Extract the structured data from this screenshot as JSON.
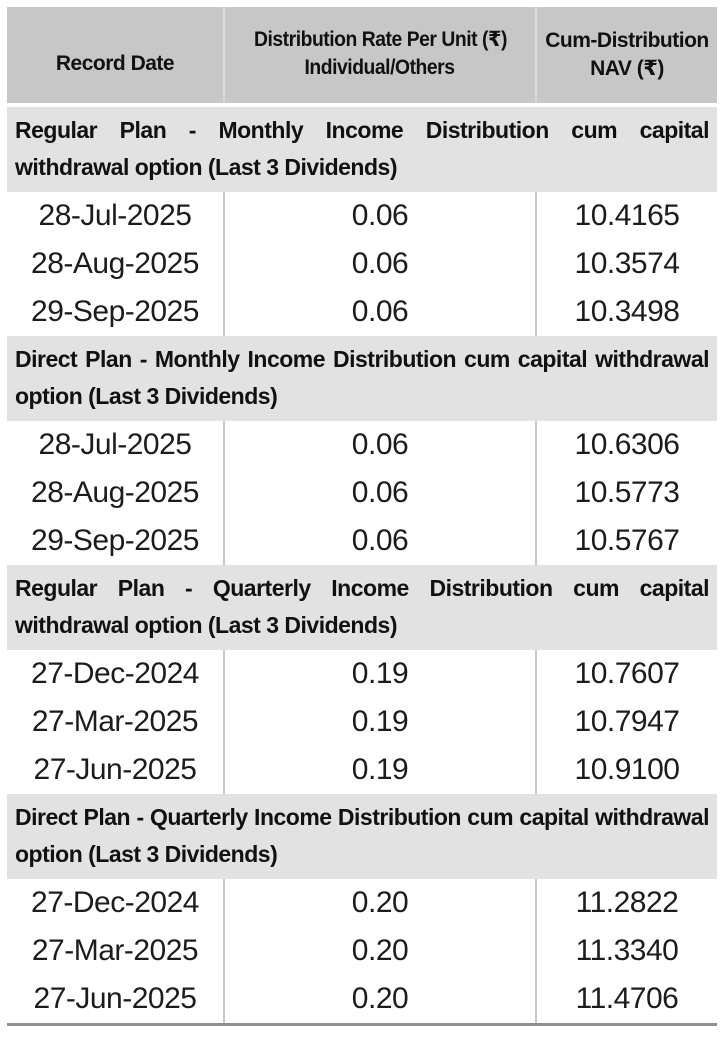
{
  "colors": {
    "header_bg": "#c7c7c7",
    "section_band_bg": "#e2e2e2",
    "divider": "#c9c9c9",
    "bottom_border": "#8f8f8f",
    "text": "#111111"
  },
  "header": {
    "record_date": "Record Date",
    "rate_line1": "Distribution Rate Per Unit (₹)",
    "rate_line2": "Individual/Others",
    "cum_nav": "Cum-Distribution NAV (₹)"
  },
  "sections": [
    {
      "title": "Regular Plan - Monthly Income Distribution cum capital withdrawal option (Last 3 Dividends)",
      "rows": [
        [
          "28-Jul-2025",
          "0.06",
          "10.4165"
        ],
        [
          "28-Aug-2025",
          "0.06",
          "10.3574"
        ],
        [
          "29-Sep-2025",
          "0.06",
          "10.3498"
        ]
      ]
    },
    {
      "title": "Direct Plan - Monthly Income Distribution cum capital withdrawal option (Last 3 Dividends)",
      "rows": [
        [
          "28-Jul-2025",
          "0.06",
          "10.6306"
        ],
        [
          "28-Aug-2025",
          "0.06",
          "10.5773"
        ],
        [
          "29-Sep-2025",
          "0.06",
          "10.5767"
        ]
      ]
    },
    {
      "title": "Regular Plan - Quarterly Income Distribution cum capital withdrawal option (Last 3 Dividends)",
      "rows": [
        [
          "27-Dec-2024",
          "0.19",
          "10.7607"
        ],
        [
          "27-Mar-2025",
          "0.19",
          "10.7947"
        ],
        [
          "27-Jun-2025",
          "0.19",
          "10.9100"
        ]
      ]
    },
    {
      "title": "Direct Plan - Quarterly Income Distribution cum capital withdrawal option (Last 3 Dividends)",
      "rows": [
        [
          "27-Dec-2024",
          "0.20",
          "11.2822"
        ],
        [
          "27-Mar-2025",
          "0.20",
          "11.3340"
        ],
        [
          "27-Jun-2025",
          "0.20",
          "11.4706"
        ]
      ]
    }
  ]
}
